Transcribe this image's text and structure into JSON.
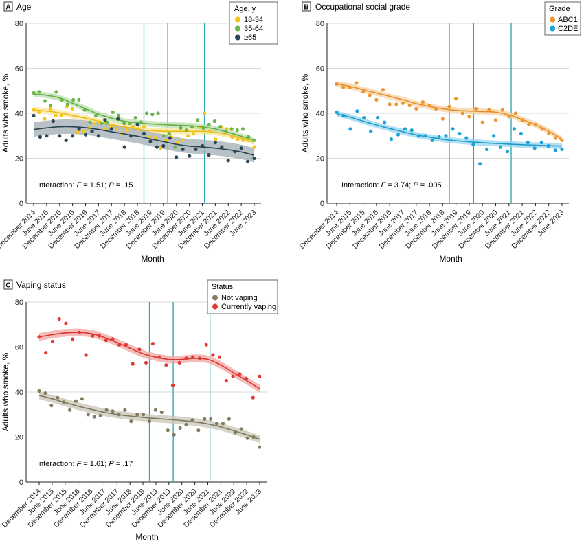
{
  "figure": {
    "x_ticks": [
      "December 2014",
      "June 2015",
      "December 2015",
      "June 2016",
      "December 2016",
      "June 2017",
      "December 2017",
      "June 2018",
      "December 2018",
      "June 2019",
      "December 2019",
      "June 2020",
      "December 2020",
      "June 2021",
      "December 2021",
      "June 2022",
      "December 2022",
      "June 2023"
    ],
    "vertical_line_dates": [
      "March 2019",
      "February 2020",
      "July 2021"
    ],
    "line_color": "#2aa6ad"
  },
  "chart_data": [
    {
      "panel_letter": "A",
      "title": "Age",
      "type": "scatter",
      "xlabel": "Month",
      "ylabel": "Adults who smoke, %",
      "ylim": [
        0,
        80
      ],
      "yticks": [
        "0",
        "20",
        "40",
        "60",
        "80"
      ],
      "interaction": {
        "prefix": "Interaction: ",
        "F": "1.51",
        "P": ".15"
      },
      "legend": {
        "title": "Age, y",
        "placement": "top-right"
      },
      "series": [
        {
          "name": "18-34",
          "color": "#f5c518",
          "points": [
            41.5,
            40.5,
            37.5,
            42,
            39,
            39,
            43,
            42,
            31.5,
            32,
            33.5,
            35.5,
            36,
            33,
            34,
            33,
            31,
            32.5,
            34,
            33,
            34,
            29.5,
            29,
            24.5,
            28,
            29.5,
            27,
            28,
            30,
            31,
            34,
            40,
            32,
            28.5,
            34,
            33,
            29.5,
            28.5,
            28,
            28,
            25
          ],
          "trend": [
            41.5,
            41,
            40.2,
            39,
            37.8,
            36.5,
            35,
            34,
            33,
            32.3,
            32,
            32,
            32,
            32,
            31.5,
            30.5,
            29,
            27.2
          ]
        },
        {
          "name": "35-64",
          "color": "#6ab64b",
          "points": [
            49,
            49.5,
            45.5,
            43.5,
            49.5,
            46,
            44,
            46,
            46,
            41.5,
            36,
            39,
            35.5,
            36,
            40.5,
            39,
            35.5,
            35.5,
            38,
            36,
            40,
            39.5,
            40,
            30,
            31,
            25,
            33.5,
            32.5,
            34,
            37,
            33.5,
            35,
            36.5,
            34,
            32,
            33,
            32.5,
            33,
            29.5,
            28
          ],
          "trend": [
            48.5,
            48,
            46.8,
            44.5,
            42,
            39.6,
            37.8,
            36.5,
            35.8,
            35.3,
            35,
            34.7,
            34.5,
            34,
            33,
            31.5,
            29.8,
            28
          ]
        },
        {
          "name": "≥65",
          "color": "#2b4655",
          "points": [
            39,
            29.5,
            30,
            36.5,
            30,
            28,
            30,
            33,
            30.5,
            32,
            30,
            37,
            33,
            37.5,
            25,
            30,
            35,
            31,
            27.5,
            25,
            25.5,
            29,
            20.5,
            24,
            21,
            24,
            25.5,
            21.5,
            27,
            25,
            19,
            23,
            24.5,
            18.5,
            20
          ],
          "trend": [
            32.8,
            33.5,
            34,
            34,
            33.6,
            32.8,
            31.8,
            30.8,
            29.8,
            28.6,
            27.4,
            26.2,
            25.4,
            25,
            24.5,
            23.8,
            22.8,
            21.3
          ],
          "band": true
        }
      ]
    },
    {
      "panel_letter": "B",
      "title": "Occupational social grade",
      "type": "scatter",
      "xlabel": "Month",
      "ylabel": "Adults who smoke, %",
      "ylim": [
        0,
        80
      ],
      "yticks": [
        "0",
        "20",
        "40",
        "60",
        "80"
      ],
      "interaction": {
        "prefix": "Interaction: ",
        "F": "3.74",
        "P": ".005"
      },
      "legend": {
        "title": "Grade",
        "placement": "top-right"
      },
      "series": [
        {
          "name": "ABC1",
          "color": "#f0962e",
          "points": [
            53,
            51.5,
            51.5,
            53.5,
            49.5,
            48,
            46,
            50.5,
            44,
            44,
            44.5,
            43.5,
            42,
            45,
            43.5,
            42,
            37.5,
            43,
            46.5,
            40,
            38.5,
            42,
            36,
            41.5,
            37,
            41.5,
            38.5,
            40,
            37,
            35,
            35,
            33,
            31,
            29,
            28
          ],
          "trend": [
            53,
            52,
            50.5,
            49,
            47.5,
            46,
            44.3,
            43,
            42,
            41.3,
            41,
            40.8,
            40.5,
            39.3,
            37.2,
            34.9,
            32,
            28.5
          ]
        },
        {
          "name": "C2DE",
          "color": "#1aa3d8",
          "points": [
            40.5,
            39,
            33,
            41,
            38,
            32,
            38,
            36,
            28.5,
            30.5,
            33,
            32.5,
            30,
            30,
            28,
            29.5,
            30,
            33,
            31,
            29,
            26,
            17.5,
            24,
            30,
            25,
            23,
            33,
            31,
            27,
            24.5,
            27,
            25.5,
            23.5,
            24
          ],
          "trend": [
            39.8,
            38.3,
            36.5,
            34.8,
            33.2,
            31.8,
            30.4,
            29.4,
            28.4,
            27.8,
            27.3,
            26.9,
            26.6,
            26.3,
            26,
            25.8,
            25.6,
            25.4
          ]
        }
      ]
    },
    {
      "panel_letter": "C",
      "title": "Vaping status",
      "type": "scatter",
      "xlabel": "Month",
      "ylabel": "Adults who smoke, %",
      "ylim": [
        0,
        80
      ],
      "yticks": [
        "0",
        "20",
        "40",
        "60",
        "80"
      ],
      "interaction": {
        "prefix": "Interaction: ",
        "F": "1.61",
        "P": ".17"
      },
      "legend": {
        "title": "Status",
        "placement": "top-right"
      },
      "series": [
        {
          "name": "Not vaping",
          "color": "#857d60",
          "points": [
            40.5,
            39.5,
            34,
            37.5,
            35.5,
            32,
            36,
            37,
            30,
            29,
            29.5,
            32,
            31.5,
            30,
            32,
            27,
            30,
            30,
            27,
            32,
            31,
            23,
            21,
            24,
            25.5,
            27.5,
            23,
            28,
            28,
            26,
            26,
            28,
            22,
            23.5,
            19.5,
            20,
            15.5
          ],
          "trend": [
            38.5,
            37,
            35.3,
            33.7,
            32.3,
            31,
            30,
            29.3,
            28.7,
            28.2,
            27.8,
            27.3,
            26.7,
            25.8,
            24.5,
            22.8,
            21,
            19
          ]
        },
        {
          "name": "Currently vaping",
          "color": "#e23a32",
          "points": [
            64.5,
            57.5,
            62.5,
            72.5,
            70.5,
            63.5,
            66.5,
            56.5,
            65,
            65,
            63,
            63.5,
            61,
            61,
            52.5,
            59,
            53,
            61.5,
            55.5,
            52,
            43,
            53,
            55,
            55.5,
            55,
            61,
            56.5,
            55.5,
            45,
            47,
            48,
            46,
            37.5,
            47
          ],
          "trend": [
            64.5,
            65.5,
            66.3,
            66.5,
            66,
            64.3,
            62,
            59.5,
            57,
            55.5,
            54.5,
            54.5,
            55,
            54.5,
            52,
            48.5,
            45,
            41.5
          ]
        }
      ]
    }
  ]
}
